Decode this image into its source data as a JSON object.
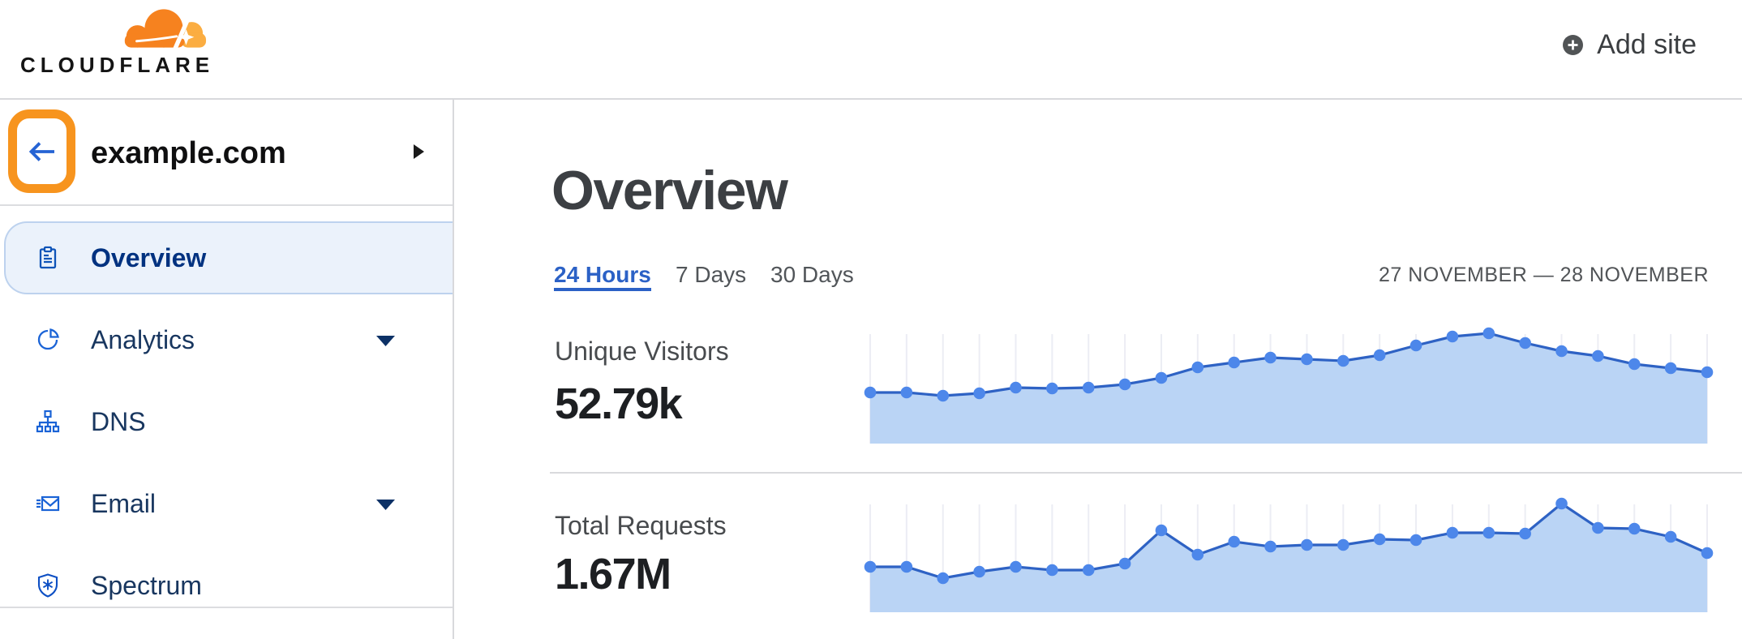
{
  "header": {
    "logo_text": "CLOUDFLARE",
    "add_site_label": "Add site"
  },
  "sidebar": {
    "site_name": "example.com",
    "items": [
      {
        "label": "Overview",
        "icon": "clipboard-icon",
        "selected": true,
        "expandable": false
      },
      {
        "label": "Analytics",
        "icon": "pie-chart-icon",
        "selected": false,
        "expandable": true
      },
      {
        "label": "DNS",
        "icon": "dns-tree-icon",
        "selected": false,
        "expandable": false
      },
      {
        "label": "Email",
        "icon": "envelope-icon",
        "selected": false,
        "expandable": true
      },
      {
        "label": "Spectrum",
        "icon": "shield-asterisk-icon",
        "selected": false,
        "expandable": false
      }
    ]
  },
  "main": {
    "title": "Overview",
    "tabs": [
      {
        "label": "24 Hours",
        "active": true
      },
      {
        "label": "7 Days",
        "active": false
      },
      {
        "label": "30 Days",
        "active": false
      }
    ],
    "date_range": "27 NOVEMBER — 28 NOVEMBER"
  },
  "chart_data": [
    {
      "type": "area",
      "title": "Unique Visitors",
      "current_value": "52.79k",
      "x": "24 hourly intervals (27 Nov — 28 Nov), no tick labels shown",
      "values": [
        63,
        63,
        59,
        62,
        69,
        68,
        69,
        73,
        81,
        94,
        100,
        106,
        104,
        102,
        109,
        121,
        132,
        136,
        124,
        114,
        108,
        98,
        93,
        88
      ],
      "value_units": "relative (sparkline, no y-axis shown)",
      "grid": "vertical ticks at each point",
      "legend": "none"
    },
    {
      "type": "area",
      "title": "Total Requests",
      "current_value": "1.67M",
      "x": "24 hourly intervals (27 Nov — 28 Nov), no tick labels shown",
      "values": [
        56,
        56,
        42,
        50,
        56,
        52,
        52,
        60,
        101,
        71,
        87,
        81,
        83,
        83,
        90,
        89,
        98,
        98,
        97,
        134,
        104,
        103,
        93,
        73
      ],
      "value_units": "relative (sparkline, no y-axis shown)",
      "grid": "vertical ticks at each point",
      "legend": "none"
    }
  ],
  "colors": {
    "brand_orange": "#f6821f",
    "brand_orange_light": "#fbad41",
    "annotation_orange": "#f7941e",
    "sidebar_icon_blue": "#1157c0",
    "selected_navy": "#003280",
    "accent_blue": "#2b61c6",
    "chart_line": "#2e62c4",
    "chart_dot": "#4d87ea",
    "chart_area": "#bad4f5",
    "chart_grid": "#ecedf4"
  }
}
